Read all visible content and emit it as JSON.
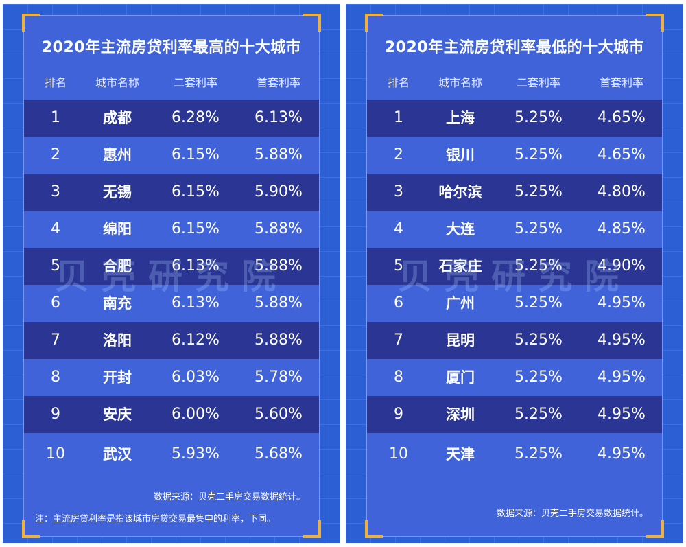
{
  "panels": [
    {
      "title": "2020年主流房贷利率最高的十大城市",
      "headers": {
        "rank": "排名",
        "city": "城市名称",
        "second": "二套利率",
        "first": "首套利率"
      },
      "rows": [
        {
          "rank": "1",
          "city": "成都",
          "second": "6.28%",
          "first": "6.13%"
        },
        {
          "rank": "2",
          "city": "惠州",
          "second": "6.15%",
          "first": "5.88%"
        },
        {
          "rank": "3",
          "city": "无锡",
          "second": "6.15%",
          "first": "5.90%"
        },
        {
          "rank": "4",
          "city": "绵阳",
          "second": "6.15%",
          "first": "5.88%"
        },
        {
          "rank": "5",
          "city": "合肥",
          "second": "6.13%",
          "first": "5.88%"
        },
        {
          "rank": "6",
          "city": "南充",
          "second": "6.13%",
          "first": "5.88%"
        },
        {
          "rank": "7",
          "city": "洛阳",
          "second": "6.12%",
          "first": "5.88%"
        },
        {
          "rank": "8",
          "city": "开封",
          "second": "6.03%",
          "first": "5.78%"
        },
        {
          "rank": "9",
          "city": "安庆",
          "second": "6.00%",
          "first": "5.60%"
        },
        {
          "rank": "10",
          "city": "武汉",
          "second": "5.93%",
          "first": "5.68%"
        }
      ],
      "watermark": "贝壳研究院",
      "source": "数据来源：贝壳二手房交易数据统计。",
      "note": "注：主流房贷利率是指该城市房贷交易最集中的利率，下同。"
    },
    {
      "title": "2020年主流房贷利率最低的十大城市",
      "headers": {
        "rank": "排名",
        "city": "城市名称",
        "second": "二套利率",
        "first": "首套利率"
      },
      "rows": [
        {
          "rank": "1",
          "city": "上海",
          "second": "5.25%",
          "first": "4.65%"
        },
        {
          "rank": "2",
          "city": "银川",
          "second": "5.25%",
          "first": "4.65%"
        },
        {
          "rank": "3",
          "city": "哈尔滨",
          "second": "5.25%",
          "first": "4.80%"
        },
        {
          "rank": "4",
          "city": "大连",
          "second": "5.25%",
          "first": "4.85%"
        },
        {
          "rank": "5",
          "city": "石家庄",
          "second": "5.25%",
          "first": "4.90%"
        },
        {
          "rank": "6",
          "city": "广州",
          "second": "5.25%",
          "first": "4.95%"
        },
        {
          "rank": "7",
          "city": "昆明",
          "second": "5.25%",
          "first": "4.95%"
        },
        {
          "rank": "8",
          "city": "厦门",
          "second": "5.25%",
          "first": "4.95%"
        },
        {
          "rank": "9",
          "city": "深圳",
          "second": "5.25%",
          "first": "4.95%"
        },
        {
          "rank": "10",
          "city": "天津",
          "second": "5.25%",
          "first": "4.95%"
        }
      ],
      "watermark": "贝壳研究院",
      "source": "数据来源：贝壳二手房交易数据统计。"
    }
  ],
  "colors": {
    "background": "#2c5fd3",
    "card": "#4163d9",
    "dark_row": "#2a3594",
    "corner_accent": "#f1b233",
    "text": "#ffffff"
  }
}
